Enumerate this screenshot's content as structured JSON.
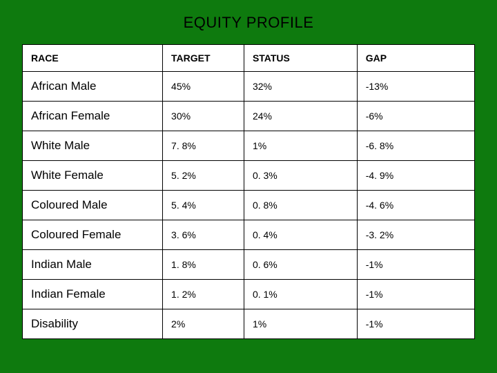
{
  "title": "EQUITY PROFILE",
  "table": {
    "type": "table",
    "background_color": "#ffffff",
    "page_background_color": "#0e7a0e",
    "border_color": "#000000",
    "text_color": "#000000",
    "title_fontsize": 22,
    "header_fontsize": 14,
    "race_cell_fontsize": 17,
    "value_cell_fontsize": 14,
    "column_widths_pct": [
      31,
      18,
      25,
      26
    ],
    "columns": [
      "RACE",
      "TARGET",
      "STATUS",
      "GAP"
    ],
    "rows": [
      {
        "race": "African Male",
        "target": "45%",
        "status": "32%",
        "gap": "-13%"
      },
      {
        "race": "African Female",
        "target": "30%",
        "status": "24%",
        "gap": "-6%"
      },
      {
        "race": "White Male",
        "target": "7. 8%",
        "status": "1%",
        "gap": "-6. 8%"
      },
      {
        "race": "White Female",
        "target": "5. 2%",
        "status": "0. 3%",
        "gap": "-4. 9%"
      },
      {
        "race": "Coloured Male",
        "target": "5. 4%",
        "status": "0. 8%",
        "gap": "-4. 6%"
      },
      {
        "race": "Coloured Female",
        "target": "3. 6%",
        "status": "0. 4%",
        "gap": "-3. 2%"
      },
      {
        "race": "Indian Male",
        "target": "1. 8%",
        "status": "0. 6%",
        "gap": "-1%"
      },
      {
        "race": "Indian Female",
        "target": "1. 2%",
        "status": "0. 1%",
        "gap": "-1%"
      },
      {
        "race": "Disability",
        "target": "2%",
        "status": "1%",
        "gap": "-1%"
      }
    ]
  }
}
